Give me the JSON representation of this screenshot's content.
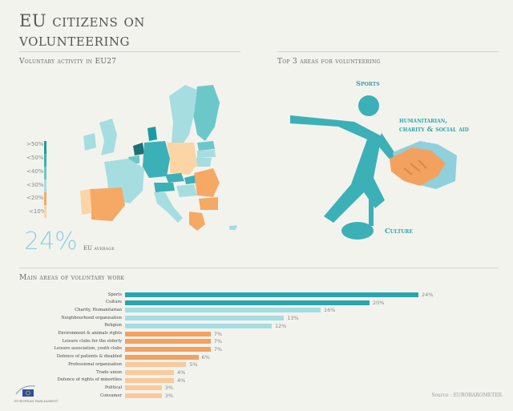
{
  "title_line1": "EU citizens on",
  "title_line2": "volunteering",
  "map_section": {
    "heading": "Voluntary activity in EU27",
    "legend": [
      ">50%",
      "<50%",
      "<40%",
      "<30%",
      "<20%",
      "<10%"
    ],
    "legend_colors": [
      "#1e9aa3",
      "#3bb0b7",
      "#6cc7c9",
      "#a6dde1",
      "#f5a964",
      "#fbd5a5"
    ],
    "average_value": "24%",
    "average_label": "EU average"
  },
  "top3_section": {
    "heading": "Top 3 areas for volunteering",
    "labels": {
      "sports": "Sports",
      "humanitarian_line1": "humanitarian,",
      "humanitarian_line2": "charity & social aid",
      "culture": "Culture"
    }
  },
  "work_section": {
    "heading": "Main areas of voluntary work"
  },
  "source": "Source : EUROBAROMETER",
  "logo_text": "EUROPEAN PARLIAMENT",
  "chart_data": {
    "type": "bar",
    "orientation": "horizontal",
    "title": "Main areas of voluntary work",
    "categories": [
      "Sports",
      "Culture",
      "Charity, Humanitarian",
      "Neighbourhood organisation",
      "Religion",
      "Environment & animals rights",
      "Leisure clubs for the elderly",
      "Leisure association, youth clubs",
      "Defence of patients & disabled",
      "Professional organisation",
      "Trade union",
      "Defence of rights of minorities",
      "Political",
      "Consumer"
    ],
    "values": [
      24,
      20,
      16,
      13,
      12,
      7,
      7,
      7,
      6,
      5,
      4,
      4,
      3,
      3
    ],
    "value_labels": [
      "24%",
      "20%",
      "16%",
      "13%",
      "12%",
      "7%",
      "7%",
      "7%",
      "6%",
      "5%",
      "4%",
      "4%",
      "3%",
      "3%"
    ],
    "bar_colors": [
      "#2aa5ae",
      "#2aa5ae",
      "#a6dde1",
      "#a6dde1",
      "#a6dde1",
      "#f3a15f",
      "#f3a15f",
      "#f3a15f",
      "#f3a15f",
      "#fbc99b",
      "#fbc99b",
      "#fbc99b",
      "#fbc99b",
      "#fbc99b"
    ],
    "xlim": [
      0,
      24
    ],
    "grid": false
  }
}
